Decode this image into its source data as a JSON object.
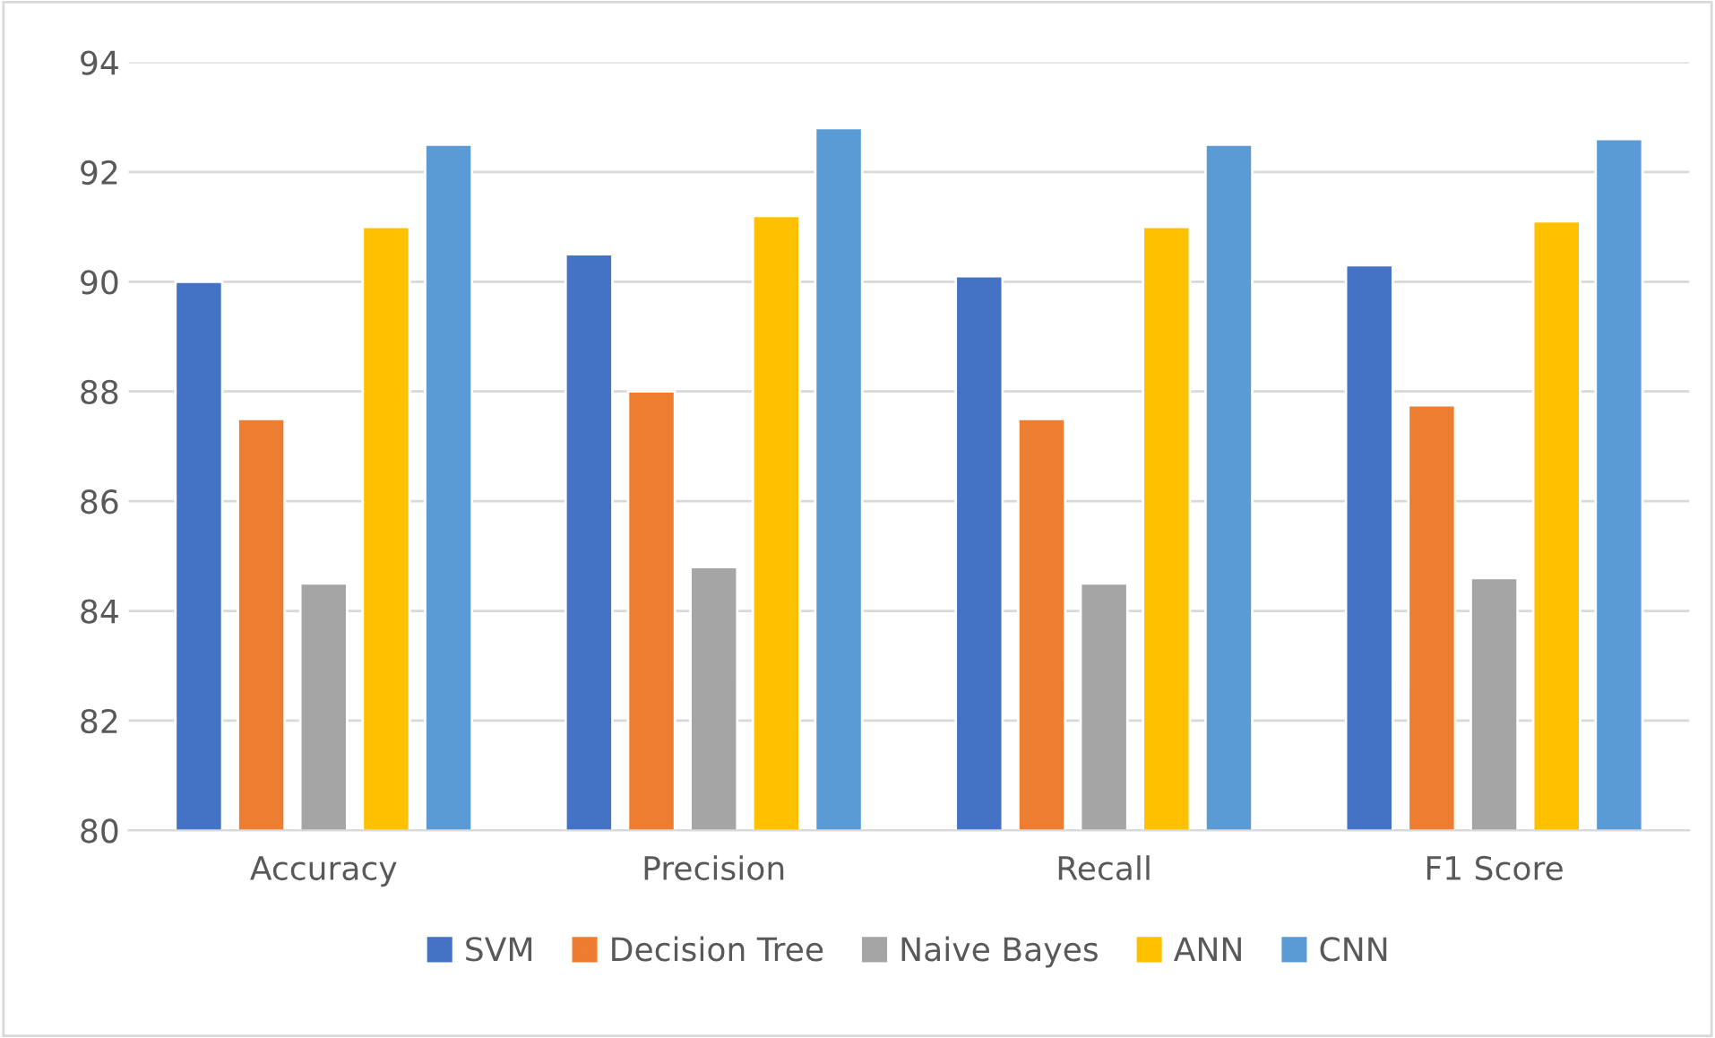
{
  "chart_data": {
    "type": "bar",
    "categories": [
      "Accuracy",
      "Precision",
      "Recall",
      "F1 Score"
    ],
    "series": [
      {
        "name": "SVM",
        "color": "#4472c4",
        "values": [
          90.0,
          90.5,
          90.1,
          90.3
        ]
      },
      {
        "name": "Decision Tree",
        "color": "#ed7d31",
        "values": [
          87.5,
          88.0,
          87.5,
          87.75
        ]
      },
      {
        "name": "Naive Bayes",
        "color": "#a5a5a5",
        "values": [
          84.5,
          84.8,
          84.5,
          84.6
        ]
      },
      {
        "name": "ANN",
        "color": "#ffc000",
        "values": [
          91.0,
          91.2,
          91.0,
          91.1
        ]
      },
      {
        "name": "CNN",
        "color": "#5b9bd5",
        "values": [
          92.5,
          92.8,
          92.5,
          92.6
        ]
      }
    ],
    "ylim": [
      80,
      94
    ],
    "yticks": [
      80,
      82,
      84,
      86,
      88,
      90,
      92,
      94
    ],
    "grid": "y",
    "legend": "bottom"
  }
}
